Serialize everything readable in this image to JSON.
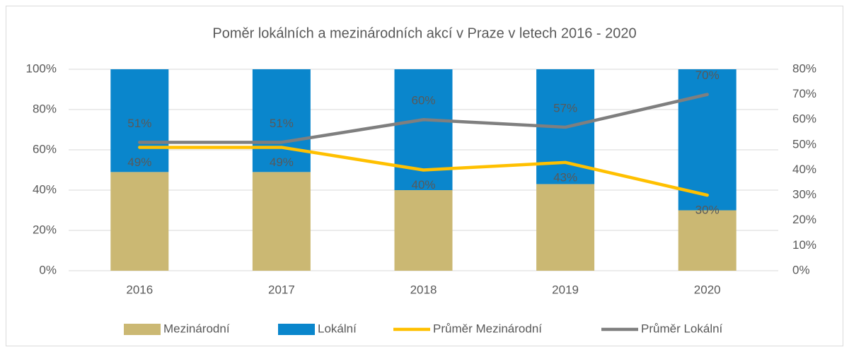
{
  "chart_data": {
    "type": "bar",
    "stacked": true,
    "title": "Poměr lokálních a mezinárodních akcí v Praze v letech 2016 - 2020",
    "categories": [
      "2016",
      "2017",
      "2018",
      "2019",
      "2020"
    ],
    "series": [
      {
        "name": "Mezinárodní",
        "type": "bar",
        "color": "#cbb873",
        "values": [
          49,
          49,
          40,
          43,
          30
        ]
      },
      {
        "name": "Lokální",
        "type": "bar",
        "color": "#0a86cc",
        "values": [
          51,
          51,
          60,
          57,
          70
        ]
      },
      {
        "name": "Průměr Mezinárodní",
        "type": "line",
        "axis": "y2",
        "color": "#ffc000",
        "values": [
          49,
          49,
          40,
          43,
          30
        ],
        "value_labels": [
          "49%",
          "49%",
          "40%",
          "43%",
          "30%"
        ],
        "label_position": "below"
      },
      {
        "name": "Průměr Lokální",
        "type": "line",
        "axis": "y2",
        "color": "#7f7f7f",
        "values": [
          51,
          51,
          60,
          57,
          70
        ],
        "value_labels": [
          "51%",
          "51%",
          "60%",
          "57%",
          "70%"
        ],
        "label_position": "above"
      }
    ],
    "ylim": [
      0,
      100
    ],
    "yticks": [
      {
        "value": 0,
        "label": "0%"
      },
      {
        "value": 20,
        "label": "20%"
      },
      {
        "value": 40,
        "label": "40%"
      },
      {
        "value": 60,
        "label": "60%"
      },
      {
        "value": 80,
        "label": "80%"
      },
      {
        "value": 100,
        "label": "100%"
      }
    ],
    "y2lim": [
      0,
      80
    ],
    "y2ticks": [
      {
        "value": 0,
        "label": "0%"
      },
      {
        "value": 10,
        "label": "10%"
      },
      {
        "value": 20,
        "label": "20%"
      },
      {
        "value": 30,
        "label": "30%"
      },
      {
        "value": 40,
        "label": "40%"
      },
      {
        "value": 50,
        "label": "50%"
      },
      {
        "value": 60,
        "label": "60%"
      },
      {
        "value": 70,
        "label": "70%"
      },
      {
        "value": 80,
        "label": "80%"
      }
    ],
    "grid": true,
    "legend": "bottom"
  }
}
